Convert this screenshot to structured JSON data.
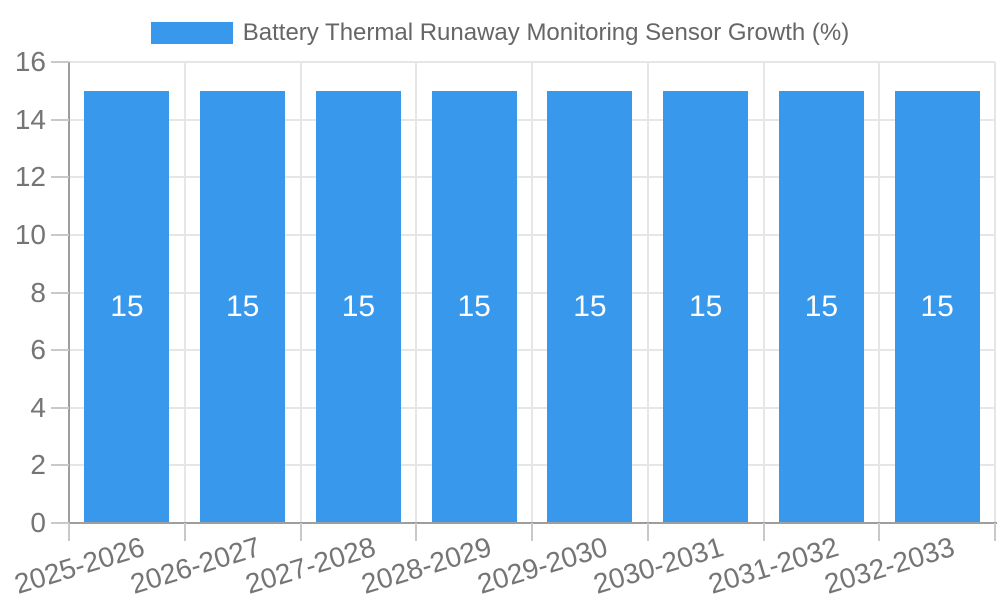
{
  "chart_data": {
    "type": "bar",
    "title": "Battery Thermal Runaway Monitoring Sensor Growth (%)",
    "categories": [
      "2025-2026",
      "2026-2027",
      "2027-2028",
      "2028-2029",
      "2029-2030",
      "2030-2031",
      "2031-2032",
      "2032-2033"
    ],
    "series": [
      {
        "name": "Battery Thermal Runaway Monitoring Sensor Growth (%)",
        "values": [
          15,
          15,
          15,
          15,
          15,
          15,
          15,
          15
        ]
      }
    ],
    "value_labels": [
      "15",
      "15",
      "15",
      "15",
      "15",
      "15",
      "15",
      "15"
    ],
    "xlabel": "",
    "ylabel": "",
    "ylim": [
      0,
      16
    ],
    "ytick_step": 2,
    "yticks": [
      0,
      2,
      4,
      6,
      8,
      10,
      12,
      14,
      16
    ],
    "grid": true,
    "legend_position": "top"
  },
  "colors": {
    "bar": "#3898ec",
    "legend_text": "#666666",
    "axis_line": "#9e9e9e",
    "gridline": "#e6e6e6",
    "tick_mark": "#c9c9c9",
    "tick_label": "#757575",
    "bar_value_label": "#ffffff",
    "background": "#ffffff"
  }
}
